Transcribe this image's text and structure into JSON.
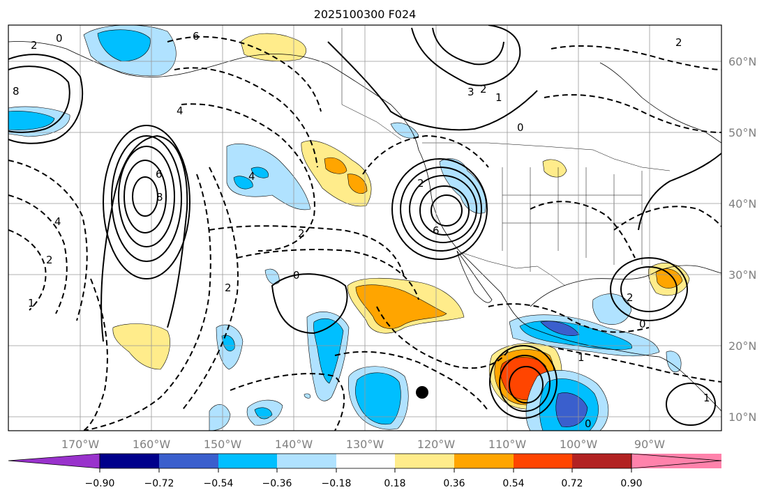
{
  "title": "2025100300 F024",
  "map": {
    "lon_labels": [
      "170°W",
      "160°W",
      "150°W",
      "140°W",
      "130°W",
      "120°W",
      "110°W",
      "100°W",
      "90°W"
    ],
    "lat_labels": [
      "60°N",
      "50°N",
      "40°N",
      "30°N",
      "20°N",
      "10°N"
    ],
    "contour_labels": [
      "6",
      "4",
      "2",
      "0",
      "2",
      "4",
      "6",
      "8",
      "2",
      "0",
      "2",
      "3",
      "2",
      "0",
      "1",
      "0",
      "1",
      "2",
      "1",
      "0",
      "2",
      "4",
      "6",
      "8",
      "2",
      "1"
    ],
    "colors": {
      "purple": "#9932cc",
      "navy": "#00008b",
      "royal_blue": "#3a5fcd",
      "deep_sky_blue": "#00bfff",
      "light_sky_blue": "#b0e2ff",
      "white": "#ffffff",
      "light_yellow": "#ffec8b",
      "orange": "#ffa500",
      "orange_red": "#ff4500",
      "firebrick": "#b22222",
      "pink": "#ff82ab"
    }
  },
  "colorbar": {
    "tick_labels": [
      "−0.90",
      "−0.72",
      "−0.54",
      "−0.36",
      "−0.18",
      "0.18",
      "0.36",
      "0.54",
      "0.72",
      "0.90"
    ],
    "colors": [
      "#9932cc",
      "#00008b",
      "#3a5fcd",
      "#00bfff",
      "#b0e2ff",
      "#ffffff",
      "#ffec8b",
      "#ffa500",
      "#ff4500",
      "#b22222",
      "#ff82ab"
    ]
  }
}
